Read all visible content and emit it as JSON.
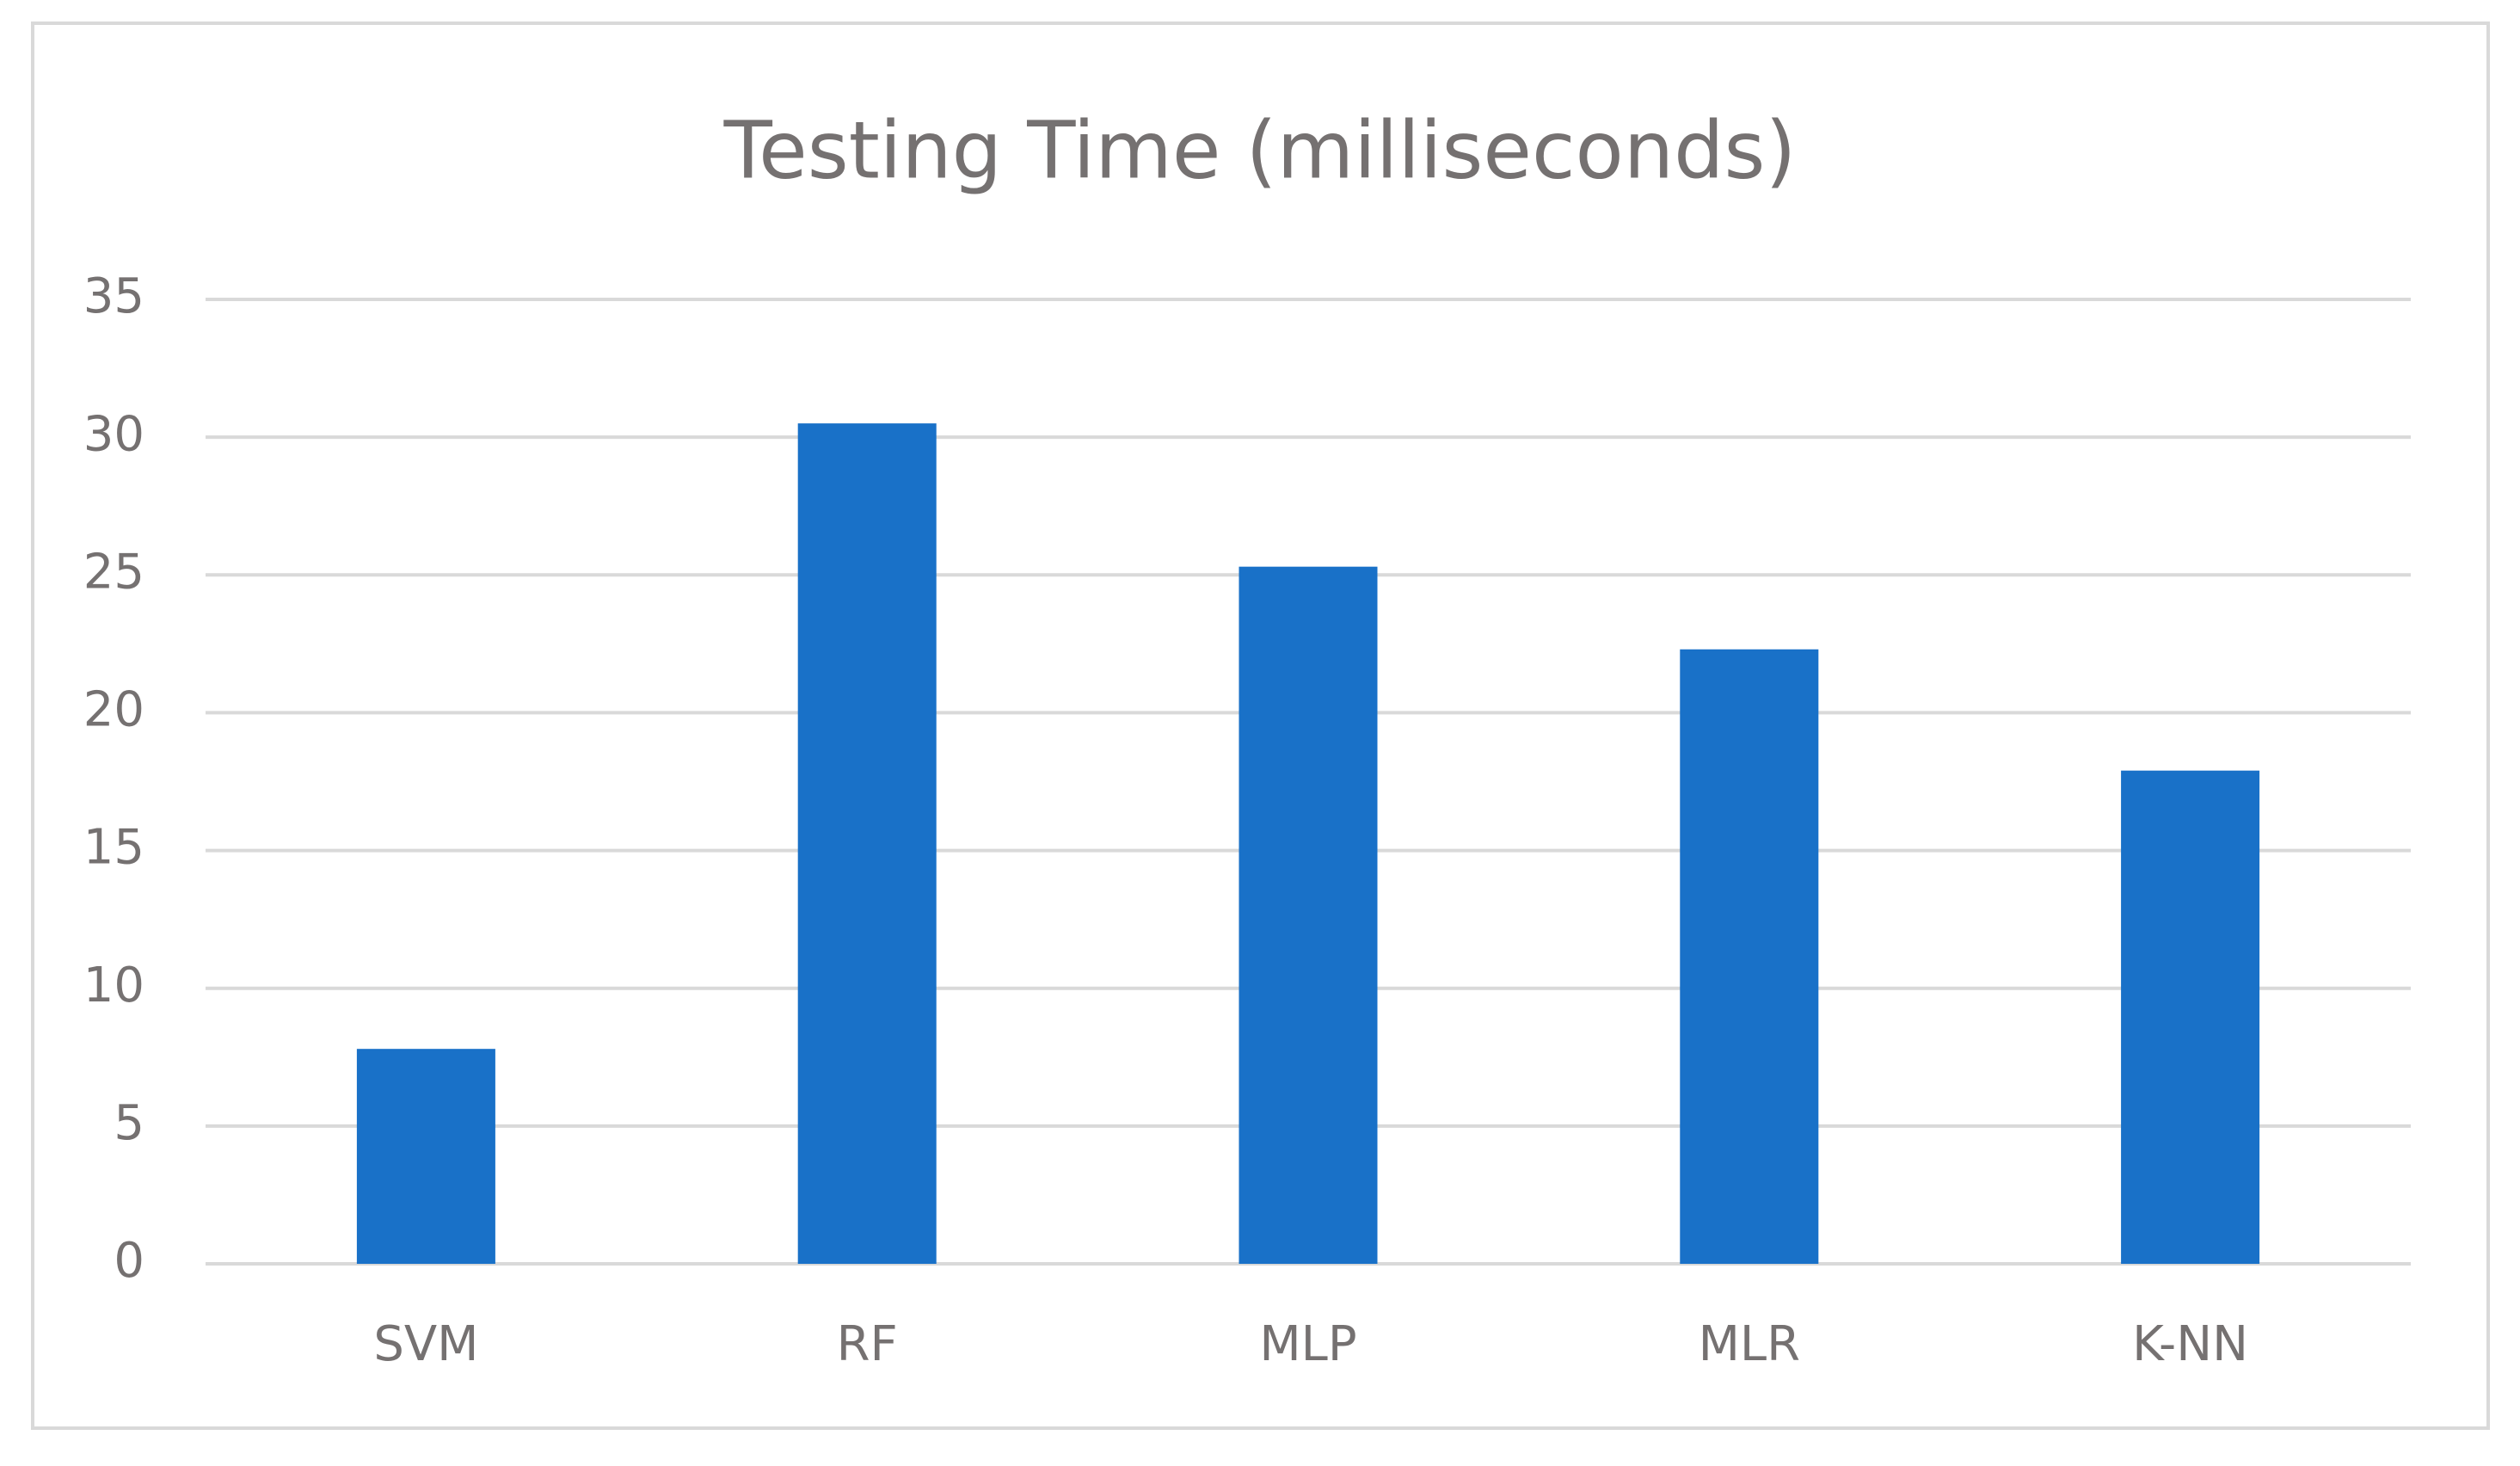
{
  "chart_data": {
    "type": "bar",
    "title": "Testing Time (milliseconds)",
    "categories": [
      "SVM",
      "RF",
      "MLP",
      "MLR",
      "K-NN"
    ],
    "values": [
      7.8,
      30.5,
      25.3,
      22.3,
      17.9
    ],
    "color": "#1971c8",
    "ylim": [
      0,
      35
    ],
    "yticks": [
      0,
      5,
      10,
      15,
      20,
      25,
      30,
      35
    ],
    "grid": true
  }
}
